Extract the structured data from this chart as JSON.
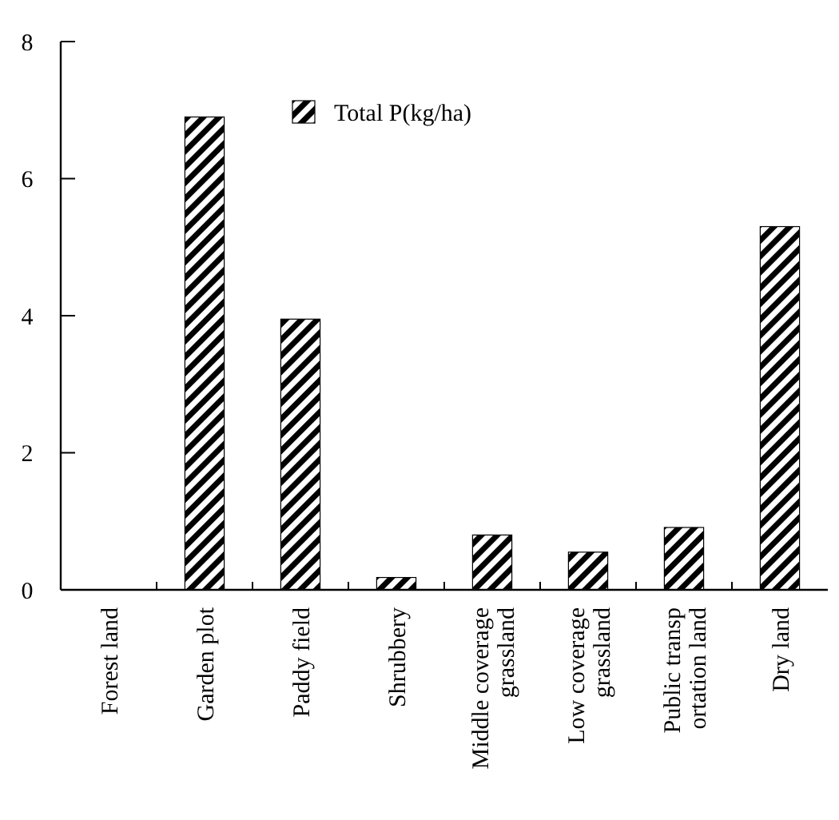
{
  "chart_data": {
    "type": "bar",
    "categories": [
      "Forest land",
      "Garden plot",
      "Paddy field",
      "Shrubbery",
      "Middle coverage\ngrassland",
      "Low coverage\ngrassland",
      "Public transp\nortation land",
      "Dry land"
    ],
    "series": [
      {
        "name": "Total P(kg/ha)",
        "color": "#000000",
        "values": [
          0,
          6.9,
          3.95,
          0.18,
          0.8,
          0.55,
          0.91,
          5.3
        ]
      }
    ],
    "ylim": [
      0,
      8
    ],
    "yticks": [
      0,
      2,
      4,
      6,
      8
    ],
    "grid": false,
    "legend": "top"
  }
}
